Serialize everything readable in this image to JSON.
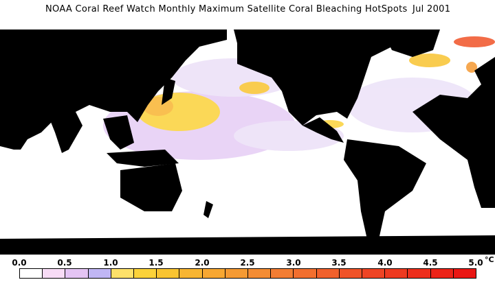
{
  "header": {
    "title": "NOAA Coral Reef Watch Monthly Maximum Satellite Coral Bleaching HotSpots",
    "date": "Jul 2001"
  },
  "legend": {
    "labels": [
      "0.0",
      "0.5",
      "1.0",
      "1.5",
      "2.0",
      "2.5",
      "3.0",
      "3.5",
      "4.0",
      "4.5",
      "5.0"
    ],
    "unit": "°C",
    "colors": [
      "#ffffff",
      "#f8dcf6",
      "#e4c4f4",
      "#c0b6f4",
      "#fde16a",
      "#fbd23a",
      "#f9c431",
      "#f8b532",
      "#f7a732",
      "#f59a33",
      "#f48c33",
      "#f37d33",
      "#f26f2f",
      "#f1612c",
      "#f05328",
      "#ef4424",
      "#ee3a20",
      "#ed2e1c",
      "#ec2318",
      "#ea1714"
    ]
  },
  "map": {
    "land_color": "#000000",
    "ocean_color": "#ffffff"
  }
}
